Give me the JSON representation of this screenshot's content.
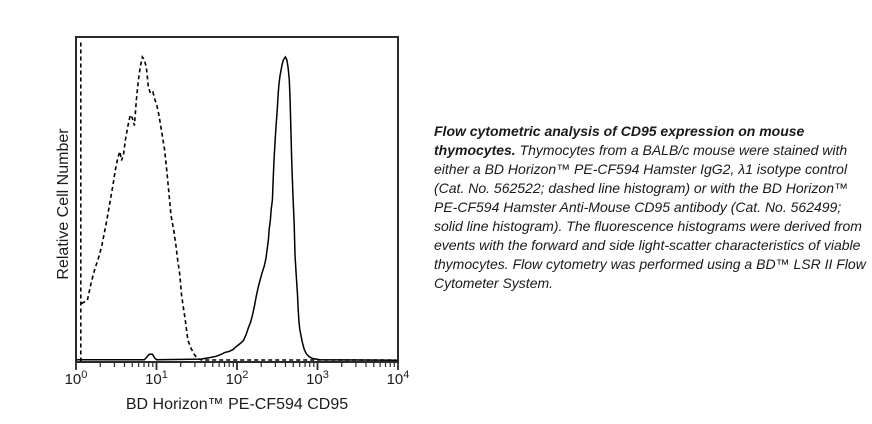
{
  "figure": {
    "background": "#ffffff",
    "ink_color": "#000000",
    "frame_color": "#2b2b2b"
  },
  "chart_data": {
    "type": "line",
    "subtype": "flow-cytometry-histogram-overlay",
    "title": "",
    "xlabel": "BD Horizon™ PE-CF594 CD95",
    "ylabel": "Relative Cell Number",
    "x_scale": "log10",
    "x_range_decades": [
      0,
      4
    ],
    "x_tick_values": [
      1,
      10,
      100,
      1000,
      10000
    ],
    "x_ticks": [
      {
        "base": "10",
        "exp": "0"
      },
      {
        "base": "10",
        "exp": "1"
      },
      {
        "base": "10",
        "exp": "2"
      },
      {
        "base": "10",
        "exp": "3"
      },
      {
        "base": "10",
        "exp": "4"
      }
    ],
    "minor_ticks_per_decade": [
      2,
      3,
      4,
      5,
      6,
      7,
      8,
      9
    ],
    "ylim": [
      0,
      106
    ],
    "grid": false,
    "legend": "none",
    "series": [
      {
        "name": "isotype-control",
        "label": "BD Horizon PE-CF594 Hamster IgG2, λ1 isotype control (dashed line histogram)",
        "style": "dashed",
        "color": "#000000",
        "segments": [
          [
            [
              0.06,
              0
            ],
            [
              0.06,
              105.5
            ]
          ],
          [
            [
              0.07,
              19
            ],
            [
              0.1,
              19.5
            ],
            [
              0.14,
              20
            ],
            [
              0.19,
              26
            ],
            [
              0.23,
              30
            ],
            [
              0.28,
              34
            ],
            [
              0.32,
              38
            ],
            [
              0.35,
              42
            ],
            [
              0.38,
              46
            ],
            [
              0.42,
              52
            ],
            [
              0.46,
              58
            ],
            [
              0.49,
              63
            ],
            [
              0.52,
              67
            ],
            [
              0.545,
              69
            ],
            [
              0.565,
              66
            ],
            [
              0.59,
              68
            ],
            [
              0.615,
              73
            ],
            [
              0.65,
              78
            ],
            [
              0.675,
              81
            ],
            [
              0.7,
              80
            ],
            [
              0.725,
              77.5
            ],
            [
              0.75,
              86
            ],
            [
              0.775,
              92.5
            ],
            [
              0.8,
              97
            ],
            [
              0.825,
              100
            ],
            [
              0.85,
              99
            ],
            [
              0.875,
              96.5
            ],
            [
              0.9,
              90
            ],
            [
              0.925,
              88
            ],
            [
              0.955,
              88.5
            ],
            [
              0.98,
              86
            ],
            [
              1.005,
              84
            ],
            [
              1.03,
              81
            ],
            [
              1.055,
              77
            ],
            [
              1.08,
              73
            ],
            [
              1.1,
              69.5
            ],
            [
              1.13,
              62
            ],
            [
              1.155,
              55
            ],
            [
              1.18,
              48
            ],
            [
              1.215,
              43
            ],
            [
              1.24,
              38.5
            ],
            [
              1.26,
              34
            ],
            [
              1.29,
              28.5
            ],
            [
              1.31,
              22
            ],
            [
              1.335,
              17.5
            ],
            [
              1.36,
              13
            ],
            [
              1.39,
              7
            ],
            [
              1.43,
              4.3
            ],
            [
              1.47,
              2.3
            ],
            [
              1.51,
              1
            ],
            [
              1.56,
              0.5
            ],
            [
              3.97,
              0.5
            ]
          ]
        ]
      },
      {
        "name": "cd95-stained",
        "label": "BD Horizon PE-CF594 Hamster Anti-Mouse CD95 antibody (solid line histogram)",
        "style": "solid",
        "color": "#000000",
        "segments": [
          [
            [
              0.0,
              0.6
            ],
            [
              0.85,
              0.6
            ],
            [
              0.885,
              1.6
            ],
            [
              0.91,
              2.4
            ],
            [
              0.95,
              2.4
            ],
            [
              0.975,
              1.2
            ],
            [
              1.0,
              0.6
            ],
            [
              1.55,
              0.8
            ],
            [
              1.67,
              1.3
            ],
            [
              1.74,
              1.7
            ],
            [
              1.8,
              2.3
            ],
            [
              1.85,
              3.0
            ],
            [
              1.9,
              3.3
            ],
            [
              1.95,
              3.9
            ],
            [
              1.99,
              4.9
            ],
            [
              2.04,
              5.9
            ],
            [
              2.08,
              6.9
            ],
            [
              2.115,
              9
            ],
            [
              2.14,
              11
            ],
            [
              2.17,
              13
            ],
            [
              2.19,
              15
            ],
            [
              2.215,
              18
            ],
            [
              2.24,
              21.5
            ],
            [
              2.265,
              24.5
            ],
            [
              2.29,
              27
            ],
            [
              2.31,
              29
            ],
            [
              2.34,
              31.5
            ],
            [
              2.36,
              34
            ],
            [
              2.375,
              37
            ],
            [
              2.39,
              40
            ],
            [
              2.4,
              43.5
            ],
            [
              2.415,
              46.5
            ],
            [
              2.425,
              50
            ],
            [
              2.44,
              53
            ],
            [
              2.45,
              60
            ],
            [
              2.46,
              66
            ],
            [
              2.475,
              73
            ],
            [
              2.487,
              78
            ],
            [
              2.5,
              83
            ],
            [
              2.51,
              87.5
            ],
            [
              2.52,
              91
            ],
            [
              2.535,
              94
            ],
            [
              2.56,
              97.5
            ],
            [
              2.575,
              99
            ],
            [
              2.6,
              100
            ],
            [
              2.62,
              99
            ],
            [
              2.635,
              96.5
            ],
            [
              2.65,
              92.5
            ],
            [
              2.66,
              86
            ],
            [
              2.67,
              76
            ],
            [
              2.68,
              66
            ],
            [
              2.695,
              55
            ],
            [
              2.71,
              45
            ],
            [
              2.72,
              35
            ],
            [
              2.735,
              28.5
            ],
            [
              2.75,
              22.5
            ],
            [
              2.76,
              17
            ],
            [
              2.77,
              13
            ],
            [
              2.78,
              10.5
            ],
            [
              2.81,
              6.5
            ],
            [
              2.835,
              4
            ],
            [
              2.86,
              2.6
            ],
            [
              2.895,
              1.6
            ],
            [
              2.94,
              1
            ],
            [
              3.03,
              0.6
            ],
            [
              3.99,
              0.4
            ]
          ]
        ]
      }
    ]
  },
  "caption": {
    "bold": "Flow cytometric analysis of CD95 expression on mouse thymocytes.",
    "rest": " Thymocytes from a BALB/c mouse were stained with either a BD Horizon™ PE-CF594 Hamster IgG2, λ1 isotype control (Cat. No. 562522; dashed line histogram) or with the BD Horizon™ PE-CF594 Hamster Anti-Mouse CD95 antibody (Cat. No. 562499; solid line histogram). The fluorescence histograms were derived from events with the forward and side light-scatter characteristics of viable thymocytes. Flow cytometry was performed using a BD™ LSR II Flow Cytometer System."
  }
}
